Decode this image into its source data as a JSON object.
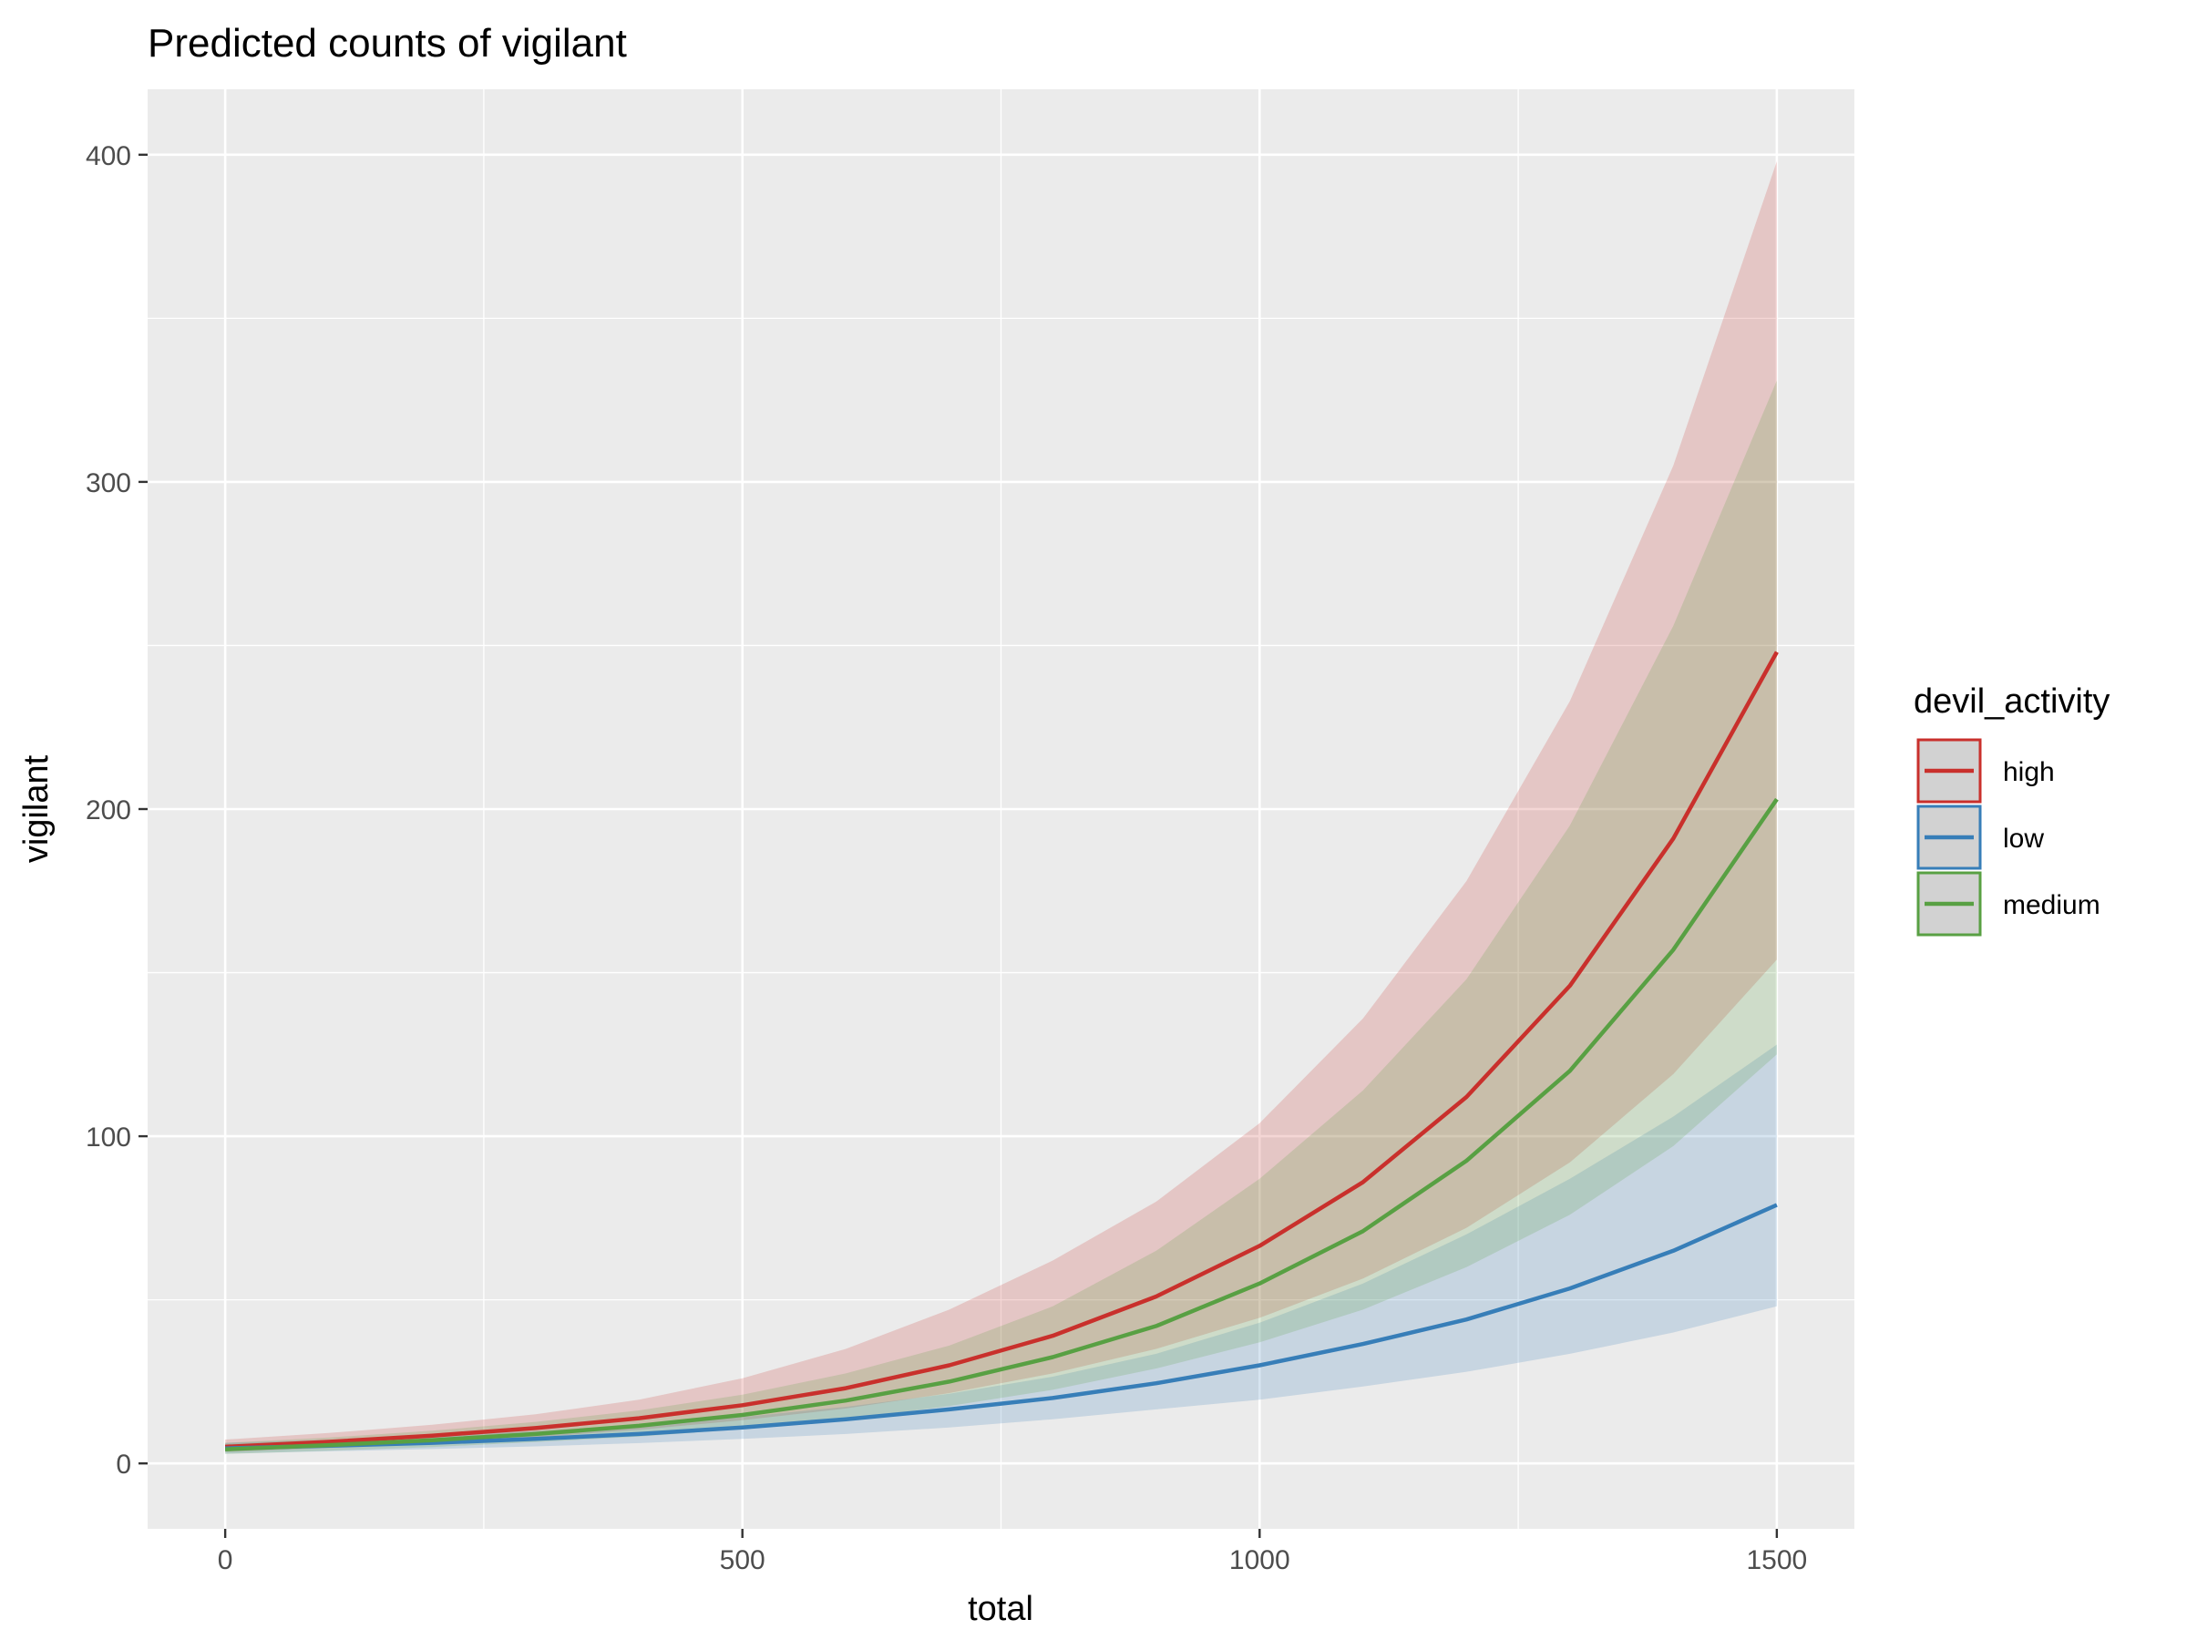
{
  "chart_data": {
    "type": "line",
    "title": "Predicted counts of vigilant",
    "xlabel": "total",
    "ylabel": "vigilant",
    "xlim": [
      -75,
      1575
    ],
    "ylim": [
      -20,
      420
    ],
    "x_ticks": [
      0,
      500,
      1000,
      1500
    ],
    "x_tick_labels": [
      "0",
      "500",
      "1000",
      "1500"
    ],
    "y_ticks": [
      0,
      100,
      200,
      300,
      400
    ],
    "y_tick_labels": [
      "0",
      "100",
      "200",
      "300",
      "400"
    ],
    "x_minor_ticks": [
      250,
      750,
      1250
    ],
    "y_minor_ticks": [
      50,
      150,
      250,
      350
    ],
    "grid": true,
    "legend": {
      "title": "devil_activity",
      "placement": "right"
    },
    "x": [
      0,
      100,
      200,
      300,
      400,
      500,
      600,
      700,
      800,
      900,
      1000,
      1100,
      1200,
      1300,
      1400,
      1500
    ],
    "series": [
      {
        "name": "high",
        "color": "#c9302c",
        "values": [
          5.1,
          6.6,
          8.5,
          10.8,
          13.8,
          17.8,
          23.0,
          30.0,
          39.0,
          51.0,
          66.5,
          86.0,
          112.0,
          146.0,
          191.0,
          248.0
        ],
        "lower": [
          3.5,
          4.7,
          6.2,
          8.0,
          10.3,
          13.2,
          16.8,
          21.5,
          27.5,
          35.0,
          44.5,
          56.5,
          72.0,
          92.0,
          119.0,
          154.0
        ],
        "upper": [
          7.3,
          9.3,
          11.8,
          15.0,
          19.5,
          26.0,
          35.0,
          47.0,
          62.0,
          80.0,
          104.0,
          136.0,
          178.0,
          233.0,
          305.0,
          398.0
        ]
      },
      {
        "name": "low",
        "color": "#377eb8",
        "values": [
          4.6,
          5.4,
          6.3,
          7.5,
          9.0,
          11.0,
          13.5,
          16.5,
          20.0,
          24.5,
          30.0,
          36.5,
          44.0,
          53.5,
          65.0,
          79.0
        ],
        "lower": [
          3.0,
          3.7,
          4.4,
          5.2,
          6.2,
          7.5,
          9.0,
          11.0,
          13.5,
          16.5,
          19.5,
          23.5,
          28.0,
          33.5,
          40.0,
          48.0
        ],
        "upper": [
          6.3,
          7.2,
          8.4,
          9.9,
          11.8,
          14.2,
          17.3,
          21.3,
          26.5,
          33.5,
          43.0,
          55.0,
          70.0,
          87.0,
          106.0,
          128.0
        ]
      },
      {
        "name": "medium",
        "color": "#58a043",
        "values": [
          4.3,
          5.6,
          7.1,
          9.0,
          11.5,
          14.8,
          19.2,
          25.0,
          32.5,
          42.0,
          55.0,
          71.0,
          92.5,
          120.0,
          157.0,
          203.0
        ],
        "lower": [
          2.9,
          3.9,
          5.0,
          6.5,
          8.2,
          10.5,
          13.5,
          17.5,
          22.5,
          29.0,
          37.0,
          47.0,
          60.0,
          76.0,
          97.0,
          125.0
        ],
        "upper": [
          6.3,
          7.9,
          10.0,
          12.7,
          16.2,
          21.0,
          27.5,
          36.0,
          48.0,
          65.0,
          87.0,
          114.0,
          148.0,
          195.0,
          256.0,
          331.0
        ]
      }
    ]
  }
}
